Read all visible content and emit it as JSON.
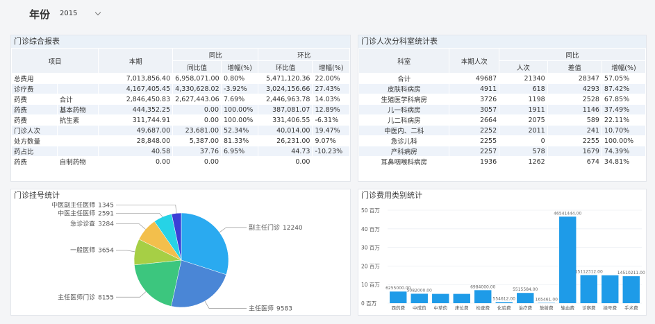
{
  "header": {
    "label": "年份",
    "year": "2015"
  },
  "report": {
    "title": "门诊综合报表",
    "header_top": [
      "项目",
      "本期",
      "同比",
      "环比"
    ],
    "header_sub": [
      "同比值",
      "增幅(%)",
      "环比值",
      "增幅(%)"
    ],
    "rows": [
      [
        "总费用",
        null,
        "7,013,856.40",
        "6,958,071.00",
        "0.80%",
        "5,471,120.36",
        "22.00%"
      ],
      [
        "诊疗费",
        null,
        "4,167,405.45",
        "4,330,628.02",
        "-3.92%",
        "3,024,156.66",
        "27.43%"
      ],
      [
        "药费",
        "合计",
        "2,846,450.83",
        "2,627,443.06",
        "7.69%",
        "2,446,963.78",
        "14.03%"
      ],
      [
        "药费",
        "基本药物",
        "444,352.25",
        "0.00",
        "100.00%",
        "387,081.07",
        "12.89%"
      ],
      [
        "药费",
        "抗生素",
        "311,744.91",
        "0.00",
        "100.00%",
        "331,406.55",
        "-6.31%"
      ],
      [
        "门诊人次",
        null,
        "49,687.00",
        "23,681.00",
        "52.34%",
        "40,014.00",
        "19.47%"
      ],
      [
        "处方数量",
        null,
        "28,848.00",
        "5,387.00",
        "81.33%",
        "26,231.00",
        "9.07%"
      ],
      [
        "药占比",
        null,
        "40.58",
        "37.76",
        "6.95%",
        "44.73",
        "-10.23%"
      ],
      [
        "药费",
        "自制药物",
        "0.00",
        "0.00",
        null,
        "0.00",
        null
      ]
    ]
  },
  "dept_table": {
    "title": "门诊人次分科室统计表",
    "header_top": [
      "科室",
      "本期人次",
      "同比"
    ],
    "header_sub": [
      "人次",
      "差值",
      "增幅(%)"
    ],
    "rows": [
      [
        "合计",
        "49687",
        "21340",
        "28347",
        "57.05%"
      ],
      [
        "皮肤科病房",
        "4911",
        "618",
        "4293",
        "87.42%"
      ],
      [
        "生殖医学科病房",
        "3726",
        "1198",
        "2528",
        "67.85%"
      ],
      [
        "儿一科病房",
        "3057",
        "1911",
        "1146",
        "37.49%"
      ],
      [
        "儿二科病房",
        "2664",
        "2075",
        "589",
        "22.11%"
      ],
      [
        "中医内、二科",
        "2252",
        "2011",
        "241",
        "10.70%"
      ],
      [
        "急诊儿科",
        "2255",
        "0",
        "2255",
        "100.00%"
      ],
      [
        "产科病房",
        "2257",
        "578",
        "1679",
        "74.39%"
      ],
      [
        "耳鼻咽喉科病房",
        "1936",
        "1262",
        "674",
        "34.81%"
      ]
    ]
  },
  "chart_data": [
    {
      "type": "pie",
      "title": "门诊挂号统计",
      "categories": [
        "副主任门诊",
        "主任医师",
        "主任医师门诊",
        "一般医师",
        "急诊诊查",
        "中医主任医师",
        "中医副主任医师"
      ],
      "values": [
        12240,
        9583,
        8155,
        3654,
        3284,
        2591,
        1345
      ],
      "colors": [
        "#2aaaf0",
        "#4a86d6",
        "#3cc67e",
        "#a6cf45",
        "#f3bf4c",
        "#26d3e6",
        "#3b3fd6"
      ]
    },
    {
      "type": "bar",
      "title": "门诊费用类别统计",
      "categories": [
        "西药费",
        "中成药",
        "中草药",
        "床位费",
        "检查费",
        "化验费",
        "治疗费",
        "放射费",
        "输血费",
        "诊察费",
        "挂号费",
        "手术费"
      ],
      "values": [
        6255000,
        5082000,
        5000000,
        5000000,
        6984000,
        554612,
        5515584,
        165461,
        46541444,
        15112312,
        15000000,
        14510211
      ],
      "value_labels": [
        "6255000.00",
        "5082000.00",
        null,
        null,
        "6984000.00",
        "554612.00",
        "5515584.00",
        "165461.00",
        "46541444.00",
        "15112312.00",
        null,
        "14510211.00"
      ],
      "color": "#1e9be8",
      "ylim": [
        0,
        50000000
      ],
      "yticks": [
        {
          "value": 0,
          "label": "0 百万"
        },
        {
          "value": 10000000,
          "label": "10 百万"
        },
        {
          "value": 20000000,
          "label": "20 百万"
        },
        {
          "value": 30000000,
          "label": "30 百万"
        },
        {
          "value": 40000000,
          "label": "40 百万"
        },
        {
          "value": 50000000,
          "label": "50 百万"
        }
      ],
      "grid": true
    }
  ]
}
